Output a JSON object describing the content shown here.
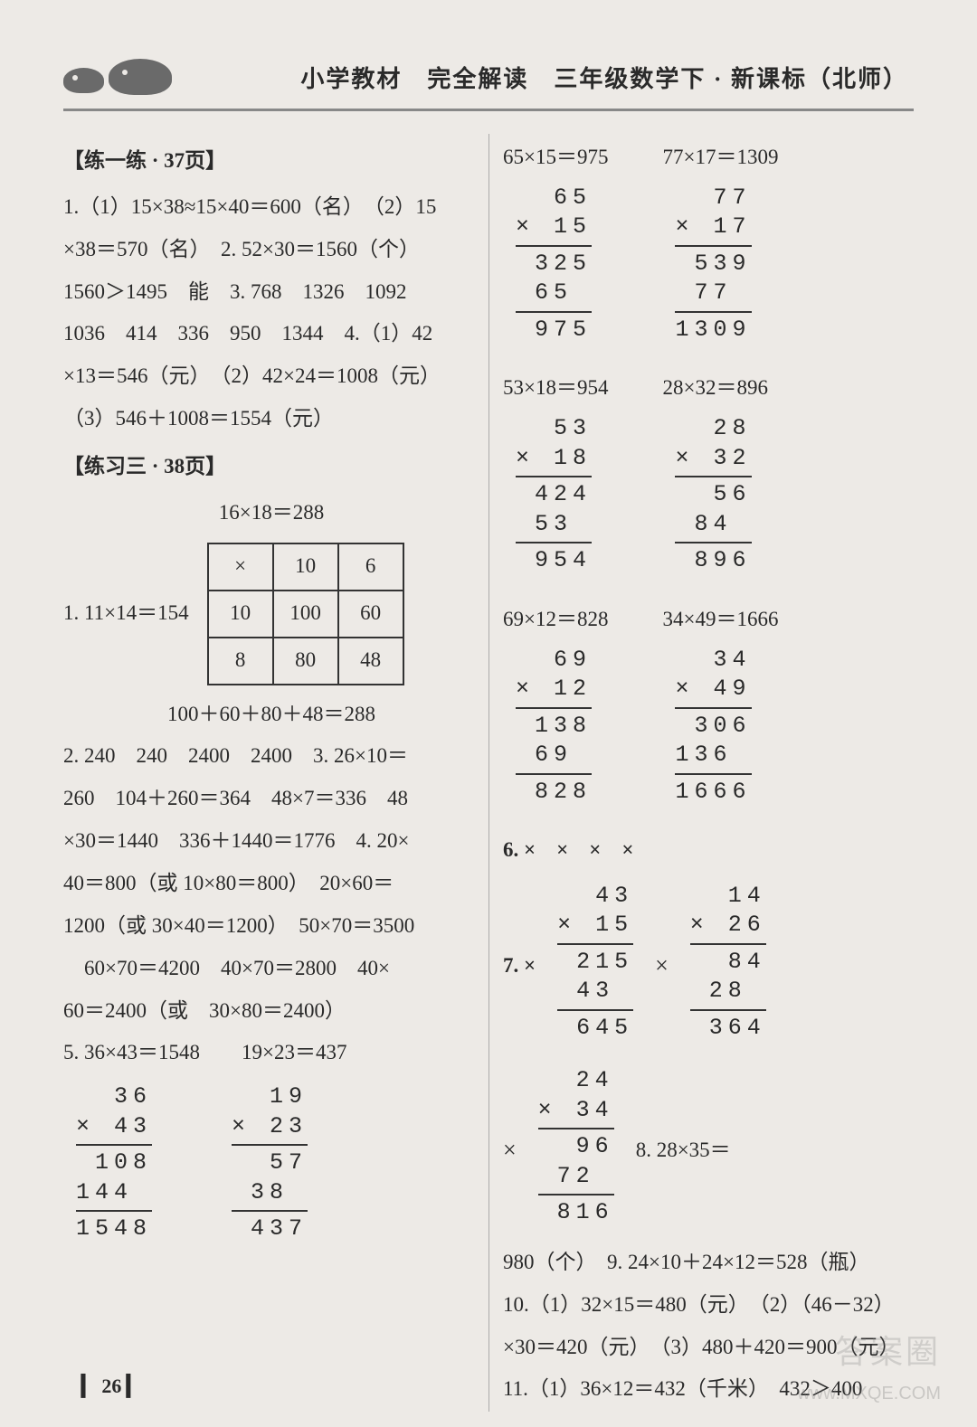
{
  "header": {
    "title": "小学教材　完全解读　三年级数学下 · 新课标（北师）"
  },
  "left": {
    "sec1_title": "【练一练 · 37页】",
    "l1": "1.（1）15×38≈15×40＝600（名）　（2）15",
    "l2": "×38＝570（名）　2. 52×30＝1560（个）",
    "l3": "1560＞1495　能　3. 768　1326　1092",
    "l4": "1036　414　336　950　1344　4.（1）42",
    "l5": "×13＝546（元）　（2）42×24＝1008（元）",
    "l6": "（3）546＋1008＝1554（元）",
    "sec2_title": "【练习三 · 38页】",
    "grid_eq": "16×18＝288",
    "q1_left": "1. 11×14＝154",
    "grid": {
      "r0c0": "×",
      "r0c1": "10",
      "r0c2": "6",
      "r1c0": "10",
      "r1c1": "100",
      "r1c2": "60",
      "r2c0": "8",
      "r2c1": "80",
      "r2c2": "48"
    },
    "grid_sum": "100＋60＋80＋48＝288",
    "l7": "2. 240　240　2400　2400　3. 26×10＝",
    "l8": "260　104＋260＝364　48×7＝336　48",
    "l9": "×30＝1440　336＋1440＝1776　4. 20×",
    "l10": "40＝800（或 10×80＝800）　20×60＝",
    "l11": "1200（或 30×40＝1200）　50×70＝3500",
    "l12": "　60×70＝4200　40×70＝2800　40×",
    "l13": "60＝2400（或　30×80＝2400）",
    "l14": "5. 36×43＝1548　　19×23＝437",
    "vm1": {
      "n1": "  36",
      "n2": "× 43",
      "p1": " 108",
      "p2": "144 ",
      "res": "1548"
    },
    "vm2": {
      "n1": " 19",
      "n2": "× 23",
      "p1": "  57",
      "p2": " 38 ",
      "res": " 437"
    }
  },
  "right": {
    "rA": {
      "eq": "65×15＝975",
      "n1": "  65",
      "n2": "× 15",
      "p1": " 325",
      "p2": " 65 ",
      "res": " 975"
    },
    "rB": {
      "eq": "77×17＝1309",
      "n1": "  77",
      "n2": "× 17",
      "p1": " 539",
      "p2": " 77 ",
      "res": "1309"
    },
    "rC": {
      "eq": "53×18＝954",
      "n1": "  53",
      "n2": "× 18",
      "p1": " 424",
      "p2": " 53 ",
      "res": " 954"
    },
    "rD": {
      "eq": "28×32＝896",
      "n1": "  28",
      "n2": "× 32",
      "p1": "  56",
      "p2": " 84 ",
      "res": " 896"
    },
    "rE": {
      "eq": "69×12＝828",
      "n1": "  69",
      "n2": "× 12",
      "p1": " 138",
      "p2": " 69 ",
      "res": " 828"
    },
    "rF": {
      "eq": "34×49＝1666",
      "n1": "  34",
      "n2": "× 49",
      "p1": " 306",
      "p2": "136 ",
      "res": "1666"
    },
    "q6": "6. ×　×　×　×",
    "q7a": {
      "n1": "  43",
      "n2": "× 15",
      "p1": " 215",
      "p2": " 43 ",
      "res": " 645"
    },
    "q7b": {
      "n1": "  14",
      "n2": "× 26",
      "p1": "  84",
      "p2": " 28 ",
      "res": " 364"
    },
    "q7label": "7. ×",
    "q7c": {
      "n1": "  24",
      "n2": "× 34",
      "p1": "  96",
      "p2": " 72 ",
      "res": " 816"
    },
    "q8label": "8. 28×35＝",
    "r1": "980（个）　9. 24×10＋24×12＝528（瓶）",
    "r2": "10.（1）32×15＝480（元）　（2）（46－32）",
    "r3": "×30＝420（元）　（3）480＋420＝900（元）",
    "r4": "11.（1）36×12＝432（千米）　432＞400"
  },
  "footer": {
    "page": "▎ 26 ▎",
    "wm1": "答案圈",
    "wm2": "www.MXQE.COM"
  },
  "colors": {
    "background": "#edeae6",
    "text": "#2a2a2a",
    "rule": "#333333",
    "header_rule": "#888888",
    "watermark": "rgba(120,120,120,0.28)"
  }
}
